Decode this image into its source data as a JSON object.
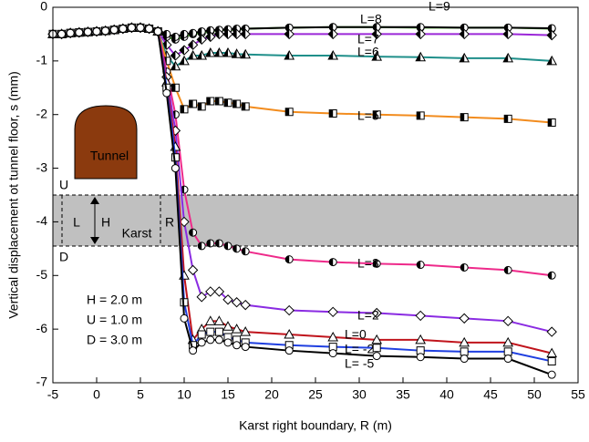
{
  "chart_data": {
    "type": "line",
    "x_label": "Karst right boundary, R (m)",
    "y_label": "Vertical displacement ot tunnel floor, s (mm)",
    "xlim": [
      -5,
      55
    ],
    "xticks": [
      -5,
      0,
      5,
      10,
      15,
      20,
      25,
      30,
      35,
      40,
      45,
      50,
      55
    ],
    "ylim": [
      -7,
      0
    ],
    "yticks": [
      -7,
      -6,
      -5,
      -4,
      -3,
      -2,
      -1,
      0
    ],
    "x": [
      -5,
      -4,
      -3,
      -2,
      -1,
      0,
      1,
      2,
      3,
      4,
      5,
      6,
      7,
      8,
      9,
      10,
      11,
      12,
      13,
      14,
      15,
      16,
      17,
      22,
      27,
      32,
      37,
      42,
      47,
      52
    ],
    "series": [
      {
        "name": "L=8",
        "color": "#4daf2e",
        "marker": "circle",
        "fill": "half",
        "values": [
          -0.5,
          -0.5,
          -0.48,
          -0.47,
          -0.46,
          -0.45,
          -0.44,
          -0.42,
          -0.4,
          -0.38,
          -0.38,
          -0.4,
          -0.45,
          -0.55,
          -0.6,
          -0.55,
          -0.5,
          -0.48,
          -0.45,
          -0.43,
          -0.42,
          -0.42,
          -0.4,
          -0.38,
          -0.37,
          -0.37,
          -0.38,
          -0.38,
          -0.38,
          -0.4
        ]
      },
      {
        "name": "L=9",
        "color": "#000000",
        "marker": "circle",
        "fill": "half",
        "values": [
          -0.5,
          -0.5,
          -0.48,
          -0.47,
          -0.46,
          -0.45,
          -0.44,
          -0.42,
          -0.4,
          -0.38,
          -0.38,
          -0.4,
          -0.45,
          -0.5,
          -0.55,
          -0.5,
          -0.48,
          -0.45,
          -0.43,
          -0.42,
          -0.41,
          -0.4,
          -0.4,
          -0.38,
          -0.37,
          -0.37,
          -0.37,
          -0.38,
          -0.38,
          -0.39
        ]
      },
      {
        "name": "L=7",
        "color": "#9b27d8",
        "marker": "diamond",
        "fill": "half",
        "values": [
          -0.5,
          -0.5,
          -0.48,
          -0.47,
          -0.46,
          -0.45,
          -0.44,
          -0.42,
          -0.4,
          -0.38,
          -0.38,
          -0.4,
          -0.45,
          -0.7,
          -0.9,
          -0.8,
          -0.7,
          -0.6,
          -0.55,
          -0.5,
          -0.5,
          -0.5,
          -0.5,
          -0.5,
          -0.5,
          -0.5,
          -0.5,
          -0.5,
          -0.5,
          -0.52
        ]
      },
      {
        "name": "L=6",
        "color": "#1f8f8a",
        "marker": "triangle",
        "fill": "half",
        "values": [
          -0.5,
          -0.5,
          -0.48,
          -0.47,
          -0.46,
          -0.45,
          -0.44,
          -0.42,
          -0.4,
          -0.38,
          -0.38,
          -0.4,
          -0.45,
          -0.9,
          -1.1,
          -1.0,
          -0.9,
          -0.9,
          -0.85,
          -0.85,
          -0.85,
          -0.87,
          -0.88,
          -0.9,
          -0.9,
          -0.92,
          -0.93,
          -0.95,
          -0.95,
          -1.0
        ]
      },
      {
        "name": "L=5",
        "color": "#f28c1e",
        "marker": "square",
        "fill": "half",
        "values": [
          -0.5,
          -0.5,
          -0.48,
          -0.47,
          -0.46,
          -0.45,
          -0.44,
          -0.42,
          -0.4,
          -0.38,
          -0.38,
          -0.4,
          -0.45,
          -1.0,
          -1.5,
          -1.9,
          -1.8,
          -1.85,
          -1.75,
          -1.75,
          -1.78,
          -1.8,
          -1.85,
          -1.95,
          -1.98,
          -2.0,
          -2.02,
          -2.05,
          -2.08,
          -2.15
        ]
      },
      {
        "name": "L=3",
        "color": "#ee2a8a",
        "marker": "circle",
        "fill": "half",
        "values": [
          -0.5,
          -0.5,
          -0.48,
          -0.47,
          -0.46,
          -0.45,
          -0.44,
          -0.42,
          -0.4,
          -0.38,
          -0.38,
          -0.4,
          -0.45,
          -1.2,
          -2.0,
          -3.4,
          -4.2,
          -4.45,
          -4.4,
          -4.4,
          -4.45,
          -4.5,
          -4.55,
          -4.7,
          -4.75,
          -4.78,
          -4.8,
          -4.85,
          -4.9,
          -5.0
        ]
      },
      {
        "name": "L=2",
        "color": "#8a2be2",
        "marker": "diamond",
        "fill": "open",
        "values": [
          -0.5,
          -0.5,
          -0.48,
          -0.47,
          -0.46,
          -0.45,
          -0.44,
          -0.42,
          -0.4,
          -0.38,
          -0.38,
          -0.4,
          -0.45,
          -1.3,
          -2.3,
          -4.0,
          -4.9,
          -5.4,
          -5.3,
          -5.3,
          -5.45,
          -5.5,
          -5.55,
          -5.65,
          -5.68,
          -5.7,
          -5.75,
          -5.8,
          -5.85,
          -6.05
        ]
      },
      {
        "name": "L=0",
        "color": "#c0141c",
        "marker": "triangle",
        "fill": "open",
        "values": [
          -0.5,
          -0.5,
          -0.48,
          -0.47,
          -0.46,
          -0.45,
          -0.44,
          -0.42,
          -0.4,
          -0.38,
          -0.38,
          -0.4,
          -0.45,
          -1.4,
          -2.6,
          -5.0,
          -6.2,
          -6.0,
          -5.85,
          -5.85,
          -5.95,
          -6.0,
          -6.05,
          -6.1,
          -6.15,
          -6.2,
          -6.2,
          -6.25,
          -6.25,
          -6.45
        ]
      },
      {
        "name": "L= -2",
        "color": "#1f3fe0",
        "marker": "square",
        "fill": "open",
        "values": [
          -0.5,
          -0.5,
          -0.48,
          -0.47,
          -0.46,
          -0.45,
          -0.44,
          -0.42,
          -0.4,
          -0.38,
          -0.38,
          -0.4,
          -0.45,
          -1.5,
          -2.8,
          -5.5,
          -6.3,
          -6.1,
          -6.05,
          -6.05,
          -6.15,
          -6.2,
          -6.25,
          -6.3,
          -6.33,
          -6.35,
          -6.4,
          -6.42,
          -6.42,
          -6.6
        ]
      },
      {
        "name": "L= -5",
        "color": "#000000",
        "marker": "circle",
        "fill": "open",
        "values": [
          -0.5,
          -0.5,
          -0.48,
          -0.47,
          -0.46,
          -0.45,
          -0.44,
          -0.42,
          -0.4,
          -0.38,
          -0.38,
          -0.4,
          -0.45,
          -1.6,
          -3.0,
          -5.8,
          -6.4,
          -6.25,
          -6.2,
          -6.2,
          -6.25,
          -6.3,
          -6.33,
          -6.4,
          -6.45,
          -6.5,
          -6.52,
          -6.55,
          -6.55,
          -6.85
        ]
      }
    ],
    "annotations": [
      "Tunnel",
      "U",
      "D",
      "L",
      "H",
      "Karst",
      "R",
      "H = 2.0 m",
      "U = 1.0 m",
      "D = 3.0 m"
    ]
  }
}
